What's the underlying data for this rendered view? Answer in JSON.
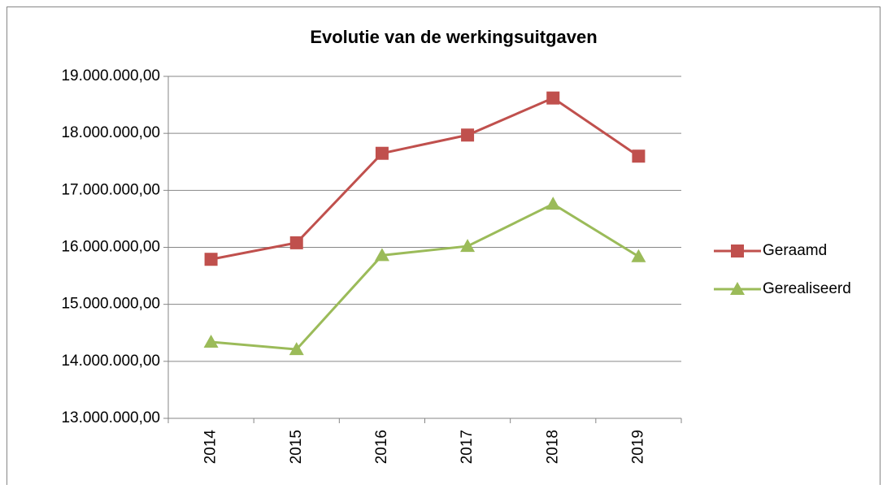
{
  "chart_data": {
    "type": "line",
    "title": "Evolutie van de werkingsuitgaven",
    "categories": [
      "2014",
      "2015",
      "2016",
      "2017",
      "2018",
      "2019"
    ],
    "series": [
      {
        "name": "Geraamd",
        "color": "#c0504d",
        "marker": "square",
        "values": [
          15790000,
          16080000,
          17650000,
          17970000,
          18620000,
          17600000
        ]
      },
      {
        "name": "Gerealiseerd",
        "color": "#9bbb59",
        "marker": "triangle",
        "values": [
          14340000,
          14210000,
          15860000,
          16020000,
          16760000,
          15840000
        ]
      }
    ],
    "ylim": [
      13000000,
      19000000
    ],
    "yticks": [
      {
        "value": 13000000,
        "label": "13.000.000,00"
      },
      {
        "value": 14000000,
        "label": "14.000.000,00"
      },
      {
        "value": 15000000,
        "label": "15.000.000,00"
      },
      {
        "value": 16000000,
        "label": "16.000.000,00"
      },
      {
        "value": 17000000,
        "label": "17.000.000,00"
      },
      {
        "value": 18000000,
        "label": "18.000.000,00"
      },
      {
        "value": 19000000,
        "label": "19.000.000,00"
      }
    ],
    "grid": true,
    "legend": "right"
  }
}
